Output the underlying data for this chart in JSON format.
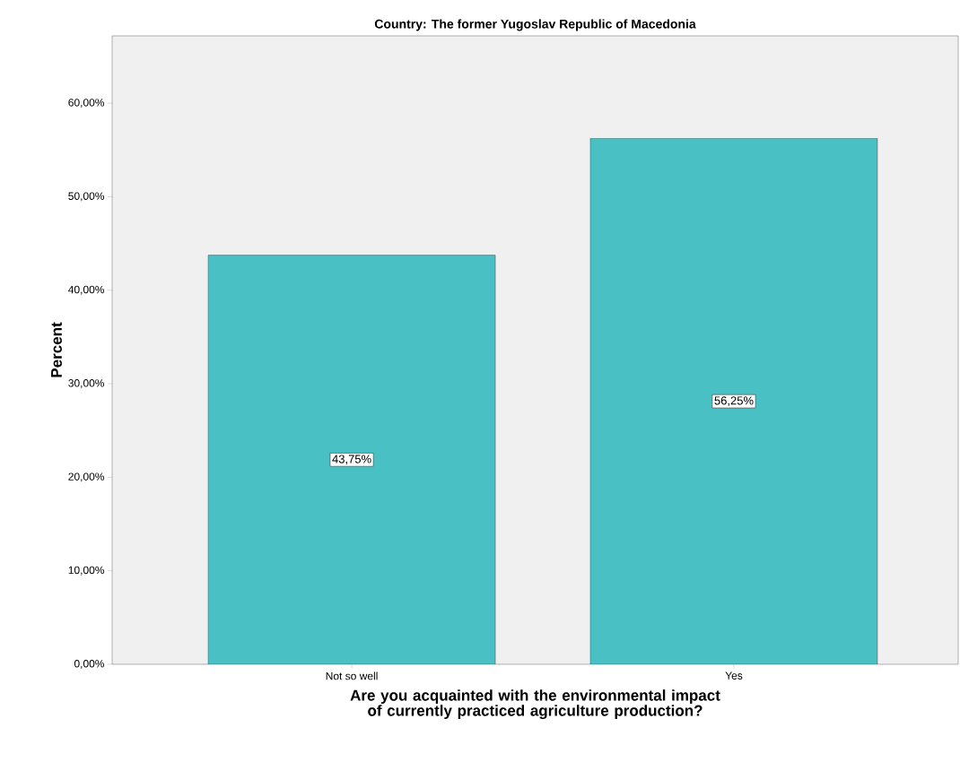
{
  "chart_data": {
    "type": "bar",
    "title": "Country: The former Yugoslav Republic of Macedonia",
    "xlabel": "Are you acquainted with the environmental impact of currently practiced agriculture production?",
    "ylabel": "Percent",
    "categories": [
      "Not so well",
      "Yes"
    ],
    "values": [
      43.75,
      56.25
    ],
    "value_labels": [
      "43,75%",
      "56,25%"
    ],
    "color": "#48c0c4",
    "ylim": [
      0,
      67.2
    ],
    "yticks": [
      {
        "value": 0,
        "label": "0,00%"
      },
      {
        "value": 10,
        "label": "10,00%"
      },
      {
        "value": 20,
        "label": "20,00%"
      },
      {
        "value": 30,
        "label": "30,00%"
      },
      {
        "value": 40,
        "label": "40,00%"
      },
      {
        "value": 50,
        "label": "50,00%"
      },
      {
        "value": 60,
        "label": "60,00%"
      }
    ],
    "grid": false
  }
}
